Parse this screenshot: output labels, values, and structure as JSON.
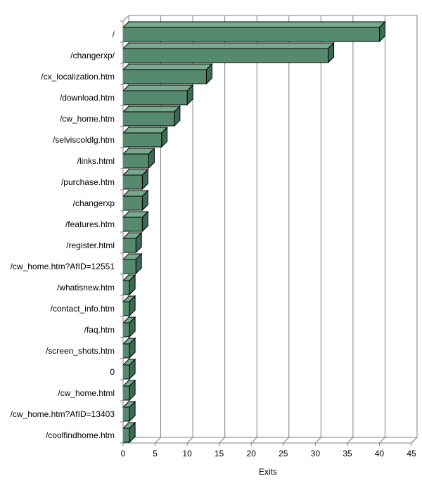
{
  "chart_data": {
    "type": "bar",
    "orientation": "horizontal",
    "style": "3d",
    "categories": [
      "/",
      "/changerxp/",
      "/cx_localization.htm",
      "/download.htm",
      "/cw_home.htm",
      "/selviscoldlg.htm",
      "/links.html",
      "/purchase.htm",
      "/changerxp",
      "/features.htm",
      "/register.html",
      "/cw_home.htm?AfID=12551",
      "/whatisnew.htm",
      "/contact_info.htm",
      "/faq.htm",
      "/screen_shots.htm",
      "0",
      "/cw_home.html",
      "/cw_home.htm?AfID=13403",
      "/coolfindhome.htm"
    ],
    "values": [
      40,
      32,
      13,
      10,
      8,
      6,
      4,
      3,
      3,
      3,
      2,
      2,
      1,
      1,
      1,
      1,
      1,
      1,
      1,
      1
    ],
    "xlabel": "Exits",
    "xlim": [
      0,
      45
    ],
    "xticks": [
      0,
      5,
      10,
      15,
      20,
      25,
      30,
      35,
      40,
      45
    ],
    "grid": true,
    "legend": "none",
    "colors": {
      "bar_front": "#558a6e",
      "bar_top": "#79a98e",
      "bar_side": "#3c6a52",
      "bar_edge": "#000000",
      "grid": "#808080",
      "axis": "#808080"
    }
  }
}
